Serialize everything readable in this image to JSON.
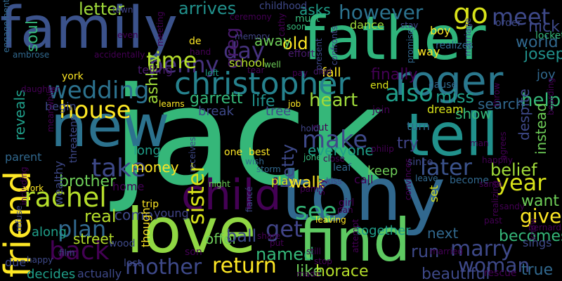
{
  "palette": {
    "background": "#000000",
    "yellow": "#fde725",
    "green": "#35b779",
    "teal": "#21918c",
    "blue": "#31688e",
    "indigo": "#443983",
    "purple": "#440154",
    "lime": "#90d743"
  },
  "words": [
    {
      "id": "jack",
      "text": "jack",
      "color": "#35b779"
    },
    {
      "id": "tony",
      "text": "tony",
      "color": "#31688e"
    },
    {
      "id": "family",
      "text": "family",
      "color": "#3b528b"
    },
    {
      "id": "father",
      "text": "father",
      "color": "#2fb47c"
    },
    {
      "id": "tell",
      "text": "tell",
      "color": "#21918c"
    },
    {
      "id": "love",
      "text": "love",
      "color": "#90d743"
    },
    {
      "id": "new",
      "text": "new",
      "color": "#2c728e"
    },
    {
      "id": "find",
      "text": "find",
      "color": "#5ec962"
    },
    {
      "id": "friend",
      "text": "friend",
      "color": "#fde725"
    },
    {
      "id": "child",
      "text": "child",
      "color": "#440154"
    },
    {
      "id": "christopher",
      "text": "christopher",
      "color": "#26828e"
    },
    {
      "id": "roger",
      "text": "roger",
      "color": "#2a788e"
    },
    {
      "id": "wedding",
      "text": "wedding",
      "color": "#2c728e"
    },
    {
      "id": "penny",
      "text": "penny",
      "color": "#46327e"
    },
    {
      "id": "time",
      "text": "time",
      "color": "#b5de2b"
    },
    {
      "id": "day",
      "text": "day",
      "color": "#46327e"
    },
    {
      "id": "greg",
      "text": "greg",
      "color": "#481a6c"
    },
    {
      "id": "go",
      "text": "go",
      "color": "#d8e219"
    },
    {
      "id": "meet",
      "text": "meet",
      "color": "#3e4989"
    },
    {
      "id": "also",
      "text": "also",
      "color": "#1f9e89"
    },
    {
      "id": "house",
      "text": "house",
      "color": "#fde725"
    },
    {
      "id": "sister",
      "text": "sister",
      "color": "#d8e219"
    },
    {
      "id": "make",
      "text": "make",
      "color": "#3e4989"
    },
    {
      "id": "take",
      "text": "take",
      "color": "#3e4989"
    },
    {
      "id": "rachel",
      "text": "rachel",
      "color": "#b5de2b"
    },
    {
      "id": "plan",
      "text": "plan",
      "color": "#31688e"
    },
    {
      "id": "back",
      "text": "back",
      "color": "#440154"
    },
    {
      "id": "mother",
      "text": "mother",
      "color": "#3e4989"
    },
    {
      "id": "return",
      "text": "return",
      "color": "#fde725"
    },
    {
      "id": "get",
      "text": "get",
      "color": "#414487"
    },
    {
      "id": "see",
      "text": "see",
      "color": "#35b779"
    },
    {
      "id": "later",
      "text": "later",
      "color": "#3b528b"
    },
    {
      "id": "belief",
      "text": "belief",
      "color": "#a0da39"
    },
    {
      "id": "year",
      "text": "year",
      "color": "#d8e219"
    },
    {
      "id": "marry",
      "text": "marry",
      "color": "#3e4989"
    },
    {
      "id": "woman",
      "text": "woman",
      "color": "#3e4989"
    },
    {
      "id": "give",
      "text": "give",
      "color": "#fde725"
    },
    {
      "id": "help",
      "text": "help",
      "color": "#35b779"
    },
    {
      "id": "however",
      "text": "however",
      "color": "#2c728e"
    },
    {
      "id": "arrives",
      "text": "arrives",
      "color": "#21918c"
    },
    {
      "id": "letter",
      "text": "letter",
      "color": "#9fda3a"
    },
    {
      "id": "ashley",
      "text": "ashley",
      "color": "#9fda3a"
    },
    {
      "id": "soul",
      "text": "soul",
      "color": "#35b779"
    },
    {
      "id": "heart",
      "text": "heart",
      "color": "#9fda3a"
    },
    {
      "id": "brother",
      "text": "brother",
      "color": "#6ece58"
    },
    {
      "id": "garrett",
      "text": "garrett",
      "color": "#35b779"
    },
    {
      "id": "betty",
      "text": "betty",
      "color": "#3e4989"
    },
    {
      "id": "everyone",
      "text": "everyone",
      "color": "#1f9e89"
    },
    {
      "id": "miss",
      "text": "miss",
      "color": "#1f9e89"
    },
    {
      "id": "finally",
      "text": "finally",
      "color": "#440154"
    },
    {
      "id": "true",
      "text": "true",
      "color": "#31688e"
    },
    {
      "id": "joseph",
      "text": "joseph",
      "color": "#21918c"
    },
    {
      "id": "world",
      "text": "world",
      "color": "#31688e"
    },
    {
      "id": "nick",
      "text": "nick",
      "color": "#3e4989"
    },
    {
      "id": "want",
      "text": "want",
      "color": "#6ece58"
    },
    {
      "id": "becomes",
      "text": "becomes",
      "color": "#35b779"
    },
    {
      "id": "despite",
      "text": "despite",
      "color": "#3e4989"
    },
    {
      "id": "instead",
      "text": "instead",
      "color": "#6ece58"
    },
    {
      "id": "named",
      "text": "named",
      "color": "#35b779"
    },
    {
      "id": "offer",
      "text": "offer",
      "color": "#6ece58"
    },
    {
      "id": "ball",
      "text": "ball",
      "color": "#3e4989"
    },
    {
      "id": "decides",
      "text": "decides",
      "color": "#1f9e89"
    },
    {
      "id": "along",
      "text": "along",
      "color": "#1f9e89"
    },
    {
      "id": "come",
      "text": "come",
      "color": "#3e4989"
    },
    {
      "id": "home",
      "text": "home",
      "color": "#440154"
    },
    {
      "id": "young",
      "text": "young",
      "color": "#414487"
    },
    {
      "id": "real",
      "text": "real",
      "color": "#b5de2b"
    },
    {
      "id": "walk",
      "text": "walk",
      "color": "#fde725"
    },
    {
      "id": "like",
      "text": "like",
      "color": "#6ece58"
    },
    {
      "id": "horace",
      "text": "horace",
      "color": "#b5de2b"
    },
    {
      "id": "beautiful",
      "text": "beautiful",
      "color": "#3e4989"
    },
    {
      "id": "run",
      "text": "run",
      "color": "#3e4989"
    },
    {
      "id": "dream",
      "text": "dream",
      "color": "#d8e219"
    },
    {
      "id": "search",
      "text": "search",
      "color": "#31688e"
    },
    {
      "id": "show",
      "text": "show",
      "color": "#35b779"
    },
    {
      "id": "joy",
      "text": "joy",
      "color": "#31688e"
    },
    {
      "id": "together",
      "text": "together",
      "color": "#1f9e89"
    },
    {
      "id": "next",
      "text": "next",
      "color": "#31688e"
    },
    {
      "id": "try",
      "text": "try",
      "color": "#414487"
    },
    {
      "id": "keep",
      "text": "keep",
      "color": "#6ece58"
    },
    {
      "id": "play",
      "text": "play",
      "color": "#d8e219"
    },
    {
      "id": "fall",
      "text": "fall",
      "color": "#fde725"
    },
    {
      "id": "old",
      "text": "old",
      "color": "#fde725"
    },
    {
      "id": "away",
      "text": "away",
      "color": "#6ece58"
    },
    {
      "id": "asks",
      "text": "asks",
      "color": "#1f9e89"
    },
    {
      "id": "dance",
      "text": "dance",
      "color": "#9fda3a"
    },
    {
      "id": "life",
      "text": "life",
      "color": "#21918c"
    },
    {
      "id": "school",
      "text": "school",
      "color": "#b5de2b"
    },
    {
      "id": "money",
      "text": "money",
      "color": "#fde725"
    },
    {
      "id": "long",
      "text": "long",
      "color": "#1f9e89"
    },
    {
      "id": "sings",
      "text": "sings",
      "color": "#3e4989"
    },
    {
      "id": "wealthy",
      "text": "wealthy",
      "color": "#3e4989"
    },
    {
      "id": "street",
      "text": "street",
      "color": "#b5de2b"
    },
    {
      "id": "parent",
      "text": "parent",
      "color": "#31688e"
    },
    {
      "id": "reveals",
      "text": "reveals",
      "color": "#1f9e89"
    },
    {
      "id": "end",
      "text": "end",
      "color": "#d8e219"
    },
    {
      "id": "way",
      "text": "way",
      "color": "#fde725"
    },
    {
      "id": "boy",
      "text": "boy",
      "color": "#fde725"
    },
    {
      "id": "telling",
      "text": "telling",
      "color": "#481a6c"
    },
    {
      "id": "break",
      "text": "break",
      "color": "#3e4989"
    },
    {
      "id": "tree",
      "text": "tree",
      "color": "#3e4989"
    },
    {
      "id": "realizes",
      "text": "realizes",
      "color": "#31688e"
    },
    {
      "id": "turn",
      "text": "turn",
      "color": "#31688e"
    },
    {
      "id": "cut",
      "text": "cut",
      "color": "#440154"
    },
    {
      "id": "hold",
      "text": "hold",
      "color": "#414487"
    },
    {
      "id": "jones",
      "text": "jones",
      "color": "#35b779"
    },
    {
      "id": "leaf",
      "text": "leaf",
      "color": "#31688e"
    },
    {
      "id": "leave",
      "text": "leave",
      "color": "#31688e"
    },
    {
      "id": "call",
      "text": "call",
      "color": "#440154"
    },
    {
      "id": "set",
      "text": "set",
      "color": "#d8e219"
    },
    {
      "id": "storm",
      "text": "storm",
      "color": "#31688e"
    },
    {
      "id": "become",
      "text": "become",
      "color": "#31688e"
    },
    {
      "id": "childhood",
      "text": "childhood",
      "color": "#3e4989"
    },
    {
      "id": "town",
      "text": "town",
      "color": "#414487"
    },
    {
      "id": "soon",
      "text": "soon",
      "color": "#35b779"
    },
    {
      "id": "must",
      "text": "must",
      "color": "#35b779"
    },
    {
      "id": "memory",
      "text": "memory",
      "color": "#414487"
    },
    {
      "id": "ceremony",
      "text": "ceremony",
      "color": "#440154"
    },
    {
      "id": "stay",
      "text": "stay",
      "color": "#3e4989"
    },
    {
      "id": "order",
      "text": "order",
      "color": "#3e4989"
    },
    {
      "id": "locket",
      "text": "locket",
      "color": "#35b779"
    },
    {
      "id": "marriage",
      "text": "marriage",
      "color": "#3e4989"
    },
    {
      "id": "even",
      "text": "even",
      "color": "#440154"
    },
    {
      "id": "engagement",
      "text": "engagement",
      "color": "#31688e"
    },
    {
      "id": "ambrose",
      "text": "ambrose",
      "color": "#31688e"
    },
    {
      "id": "meeting",
      "text": "meeting",
      "color": "#440154"
    },
    {
      "id": "de",
      "text": "de",
      "color": "#fde725"
    },
    {
      "id": "hand",
      "text": "hand",
      "color": "#440154"
    },
    {
      "id": "accidentally",
      "text": "accidentally",
      "color": "#440154"
    },
    {
      "id": "effort",
      "text": "effort",
      "color": "#481a6c"
    },
    {
      "id": "well",
      "text": "well",
      "color": "#6ece58"
    },
    {
      "id": "cathy",
      "text": "cathy",
      "color": "#440154"
    },
    {
      "id": "present",
      "text": "present",
      "color": "#3e4989"
    },
    {
      "id": "confronts",
      "text": "confronts",
      "color": "#414487"
    },
    {
      "id": "promise",
      "text": "promise",
      "color": "#31688e"
    },
    {
      "id": "york",
      "text": "york",
      "color": "#fde725"
    },
    {
      "id": "left",
      "text": "left",
      "color": "#1f9e89"
    },
    {
      "id": "tear",
      "text": "tear",
      "color": "#440154"
    },
    {
      "id": "pay",
      "text": "pay",
      "color": "#440154"
    },
    {
      "id": "died",
      "text": "died",
      "color": "#481a6c"
    },
    {
      "id": "daughter",
      "text": "daughter",
      "color": "#440154"
    },
    {
      "id": "learns",
      "text": "learns",
      "color": "#fde725"
    },
    {
      "id": "job",
      "text": "job",
      "color": "#fde725"
    },
    {
      "id": "cause",
      "text": "cause",
      "color": "#31688e"
    },
    {
      "id": "join",
      "text": "join",
      "color": "#440154"
    },
    {
      "id": "throw",
      "text": "throw",
      "color": "#440154"
    },
    {
      "id": "boarding",
      "text": "boarding",
      "color": "#440154"
    },
    {
      "id": "begin",
      "text": "begin",
      "color": "#3e4989"
    },
    {
      "id": "meanwhile",
      "text": "meanwhile",
      "color": "#440154"
    },
    {
      "id": "threatens",
      "text": "threatens",
      "color": "#3e4989"
    },
    {
      "id": "including",
      "text": "including",
      "color": "#440154"
    },
    {
      "id": "work",
      "text": "work",
      "color": "#fde725"
    },
    {
      "id": "refuse",
      "text": "refuse",
      "color": "#3e4989"
    },
    {
      "id": "trip",
      "text": "trip",
      "color": "#fde725"
    },
    {
      "id": "receives",
      "text": "receives",
      "color": "#3e4989"
    },
    {
      "id": "night",
      "text": "night",
      "color": "#6ece58"
    },
    {
      "id": "fianc",
      "text": "fiancé",
      "color": "#3e4989"
    },
    {
      "id": "one",
      "text": "one",
      "color": "#fde725"
    },
    {
      "id": "best",
      "text": "best",
      "color": "#fde725"
    },
    {
      "id": "wish",
      "text": "wish",
      "color": "#31688e"
    },
    {
      "id": "pam",
      "text": "pam",
      "color": "#440154"
    },
    {
      "id": "close",
      "text": "close",
      "color": "#440154"
    },
    {
      "id": "since",
      "text": "since",
      "color": "#3e4989"
    },
    {
      "id": "man",
      "text": "man",
      "color": "#440154"
    },
    {
      "id": "happily",
      "text": "happily",
      "color": "#440154"
    },
    {
      "id": "agrees",
      "text": "agrees",
      "color": "#440154"
    },
    {
      "id": "philip",
      "text": "philip",
      "color": "#440154"
    },
    {
      "id": "kiss",
      "text": "kiss",
      "color": "#3e4989"
    },
    {
      "id": "santa",
      "text": "santa",
      "color": "#440154"
    },
    {
      "id": "know",
      "text": "know",
      "color": "#440154"
    },
    {
      "id": "sandy",
      "text": "sandy",
      "color": "#440154"
    },
    {
      "id": "visit",
      "text": "visit",
      "color": "#440154"
    },
    {
      "id": "film",
      "text": "film",
      "color": "#3e4989"
    },
    {
      "id": "happy",
      "text": "happy",
      "color": "#3e4989"
    },
    {
      "id": "due",
      "text": "due",
      "color": "#3e4989"
    },
    {
      "id": "actually",
      "text": "actually",
      "color": "#3e4989"
    },
    {
      "id": "lost",
      "text": "lost",
      "color": "#3e4989"
    },
    {
      "id": "wood",
      "text": "wood",
      "color": "#3e4989"
    },
    {
      "id": "son",
      "text": "son",
      "color": "#440154"
    },
    {
      "id": "share",
      "text": "share",
      "color": "#440154"
    },
    {
      "id": "put",
      "text": "put",
      "color": "#440154"
    },
    {
      "id": "girl",
      "text": "girl",
      "color": "#440154"
    },
    {
      "id": "pan",
      "text": "pan",
      "color": "#440154"
    },
    {
      "id": "leaving",
      "text": "leaving",
      "color": "#fde725"
    },
    {
      "id": "still",
      "text": "still",
      "color": "#440154"
    },
    {
      "id": "stop",
      "text": "stop",
      "color": "#440154"
    },
    {
      "id": "made",
      "text": "made",
      "color": "#440154"
    },
    {
      "id": "attempt",
      "text": "attempt",
      "color": "#440154"
    },
    {
      "id": "convinces",
      "text": "convinces",
      "color": "#440154"
    },
    {
      "id": "realizing",
      "text": "realizing",
      "color": "#440154"
    },
    {
      "id": "married",
      "text": "married",
      "color": "#440154"
    },
    {
      "id": "rescue",
      "text": "rescue",
      "color": "#440154"
    },
    {
      "id": "past",
      "text": "past",
      "color": "#440154"
    },
    {
      "id": "bernard",
      "text": "bernard",
      "color": "#440154"
    },
    {
      "id": "say",
      "text": "say",
      "color": "#440154"
    },
    {
      "id": "though",
      "text": "though",
      "color": "#fde725"
    }
  ]
}
